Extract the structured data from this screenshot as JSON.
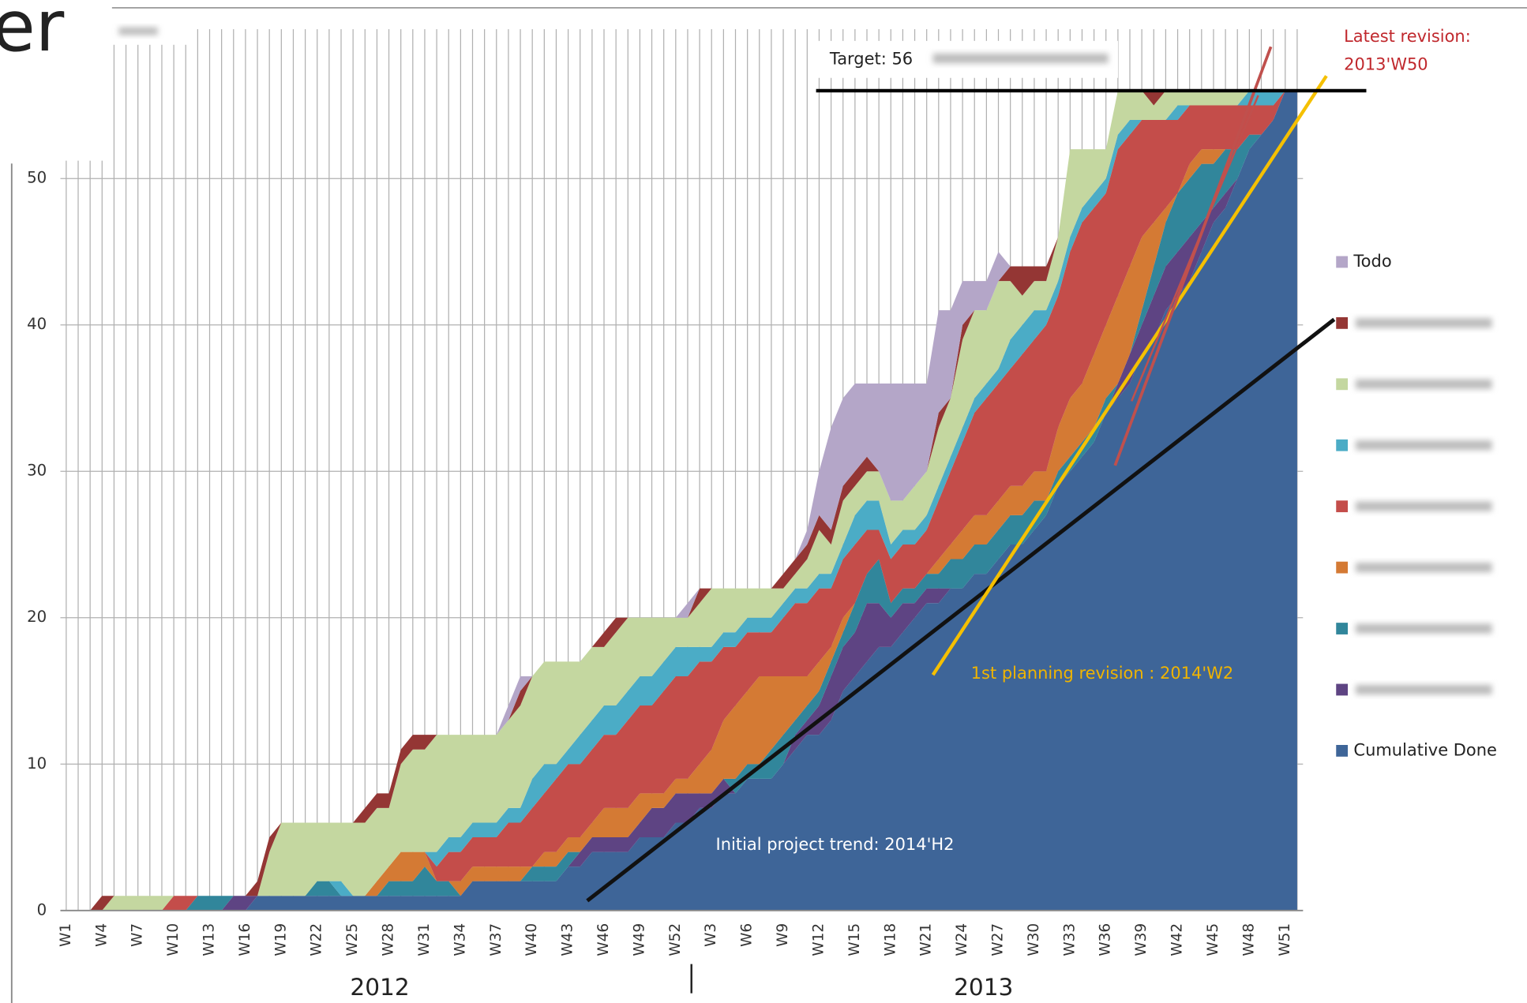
{
  "slide": {
    "title_fragment": "er"
  },
  "chart_data": {
    "type": "stacked-area",
    "categories": [
      "W1",
      null,
      null,
      "W4",
      null,
      null,
      "W7",
      null,
      null,
      "W10",
      null,
      null,
      "W13",
      null,
      null,
      "W16",
      null,
      null,
      "W19",
      null,
      null,
      "W22",
      null,
      null,
      "W25",
      null,
      null,
      "W28",
      null,
      null,
      "W31",
      null,
      null,
      "W34",
      null,
      null,
      "W37",
      null,
      null,
      "W40",
      null,
      null,
      "W43",
      null,
      null,
      "W46",
      null,
      null,
      "W49",
      null,
      null,
      "W52",
      null,
      null,
      "W3",
      null,
      null,
      "W6",
      null,
      null,
      "W9",
      null,
      null,
      "W12",
      null,
      null,
      "W15",
      null,
      null,
      "W18",
      null,
      null,
      "W21",
      null,
      null,
      "W24",
      null,
      null,
      "W27",
      null,
      null,
      "W30",
      null,
      null,
      "W33",
      null,
      null,
      "W36",
      null,
      null,
      "W39",
      null,
      null,
      "W42",
      null,
      null,
      "W45",
      null,
      null,
      "W48",
      null,
      null,
      "W51",
      null
    ],
    "x_group_labels": [
      "2012",
      "2013"
    ],
    "ylim": [
      0,
      60
    ],
    "yticks": [
      0,
      10,
      20,
      30,
      40,
      50
    ],
    "grid": true,
    "legend": "right",
    "series": [
      {
        "name": "Cumulative Done",
        "color": "#3e6598",
        "values": [
          0,
          0,
          0,
          0,
          0,
          0,
          0,
          0,
          0,
          0,
          0,
          0,
          0,
          0,
          0,
          0,
          1,
          1,
          1,
          1,
          1,
          1,
          1,
          1,
          1,
          1,
          1,
          1,
          1,
          1,
          1,
          1,
          1,
          1,
          2,
          2,
          2,
          2,
          2,
          2,
          2,
          2,
          3,
          3,
          4,
          4,
          4,
          4,
          5,
          5,
          5,
          6,
          6,
          7,
          7,
          8,
          8,
          9,
          9,
          9,
          10,
          11,
          12,
          12,
          13,
          15,
          16,
          17,
          18,
          18,
          19,
          20,
          21,
          21,
          22,
          22,
          23,
          23,
          24,
          25,
          25,
          26,
          27,
          29,
          30,
          31,
          32,
          34,
          35,
          36,
          38,
          39,
          41,
          42,
          43,
          45,
          47,
          48,
          50,
          52,
          53,
          54,
          56,
          56
        ]
      },
      {
        "color": "#5e4483",
        "values": [
          0,
          0,
          0,
          0,
          0,
          0,
          0,
          0,
          0,
          0,
          0,
          0,
          0,
          0,
          1,
          1,
          0,
          0,
          0,
          0,
          0,
          0,
          0,
          0,
          0,
          0,
          0,
          0,
          0,
          0,
          0,
          0,
          0,
          0,
          0,
          0,
          0,
          0,
          0,
          0,
          0,
          0,
          0,
          1,
          1,
          1,
          1,
          1,
          1,
          2,
          2,
          2,
          2,
          1,
          1,
          1,
          0,
          0,
          0,
          0,
          0,
          1,
          1,
          2,
          3,
          3,
          3,
          4,
          3,
          2,
          2,
          1,
          1,
          1,
          0,
          0,
          0,
          0,
          0,
          0,
          0,
          0,
          0,
          0,
          0,
          0,
          0,
          0,
          1,
          2,
          2,
          3,
          3,
          3,
          3,
          2,
          1,
          1,
          0,
          0,
          0,
          0,
          0,
          0
        ]
      },
      {
        "color": "#31869b",
        "values": [
          0,
          0,
          0,
          0,
          0,
          0,
          0,
          0,
          0,
          0,
          0,
          1,
          1,
          1,
          0,
          0,
          0,
          0,
          0,
          0,
          0,
          1,
          1,
          0,
          0,
          0,
          0,
          1,
          1,
          1,
          2,
          1,
          1,
          0,
          0,
          0,
          0,
          0,
          0,
          1,
          1,
          1,
          1,
          0,
          0,
          0,
          0,
          0,
          0,
          0,
          0,
          0,
          0,
          0,
          0,
          0,
          1,
          1,
          1,
          2,
          2,
          1,
          1,
          1,
          1,
          1,
          2,
          2,
          3,
          1,
          1,
          1,
          1,
          1,
          2,
          2,
          2,
          2,
          2,
          2,
          2,
          2,
          1,
          1,
          1,
          1,
          1,
          1,
          0,
          0,
          1,
          2,
          3,
          4,
          4,
          4,
          3,
          3,
          2,
          1,
          0,
          0,
          0,
          0
        ]
      },
      {
        "color": "#d47a34",
        "values": [
          0,
          0,
          0,
          0,
          0,
          0,
          0,
          0,
          0,
          0,
          0,
          0,
          0,
          0,
          0,
          0,
          0,
          0,
          0,
          0,
          0,
          0,
          0,
          0,
          0,
          0,
          1,
          1,
          2,
          2,
          1,
          0,
          0,
          1,
          1,
          1,
          1,
          1,
          1,
          0,
          1,
          1,
          1,
          1,
          1,
          2,
          2,
          2,
          2,
          1,
          1,
          1,
          1,
          2,
          3,
          4,
          5,
          5,
          6,
          5,
          4,
          3,
          2,
          2,
          1,
          1,
          0,
          0,
          0,
          0,
          0,
          0,
          0,
          1,
          1,
          2,
          2,
          2,
          2,
          2,
          2,
          2,
          2,
          3,
          4,
          4,
          5,
          5,
          6,
          6,
          5,
          3,
          1,
          0,
          1,
          1,
          1,
          0,
          0,
          0,
          0,
          0,
          0,
          0
        ]
      },
      {
        "color": "#c44d4a",
        "values": [
          0,
          0,
          0,
          0,
          0,
          0,
          0,
          0,
          0,
          1,
          1,
          0,
          0,
          0,
          0,
          0,
          0,
          0,
          0,
          0,
          0,
          0,
          0,
          0,
          0,
          0,
          0,
          0,
          0,
          0,
          0,
          1,
          2,
          2,
          2,
          2,
          2,
          3,
          3,
          4,
          4,
          5,
          5,
          5,
          5,
          5,
          5,
          6,
          6,
          6,
          7,
          7,
          7,
          7,
          6,
          5,
          4,
          4,
          3,
          3,
          4,
          5,
          5,
          5,
          4,
          4,
          4,
          3,
          2,
          3,
          3,
          3,
          3,
          4,
          5,
          6,
          7,
          8,
          8,
          8,
          9,
          9,
          10,
          9,
          10,
          11,
          10,
          9,
          10,
          9,
          8,
          7,
          6,
          5,
          4,
          3,
          3,
          3,
          3,
          2,
          2,
          1,
          0,
          0
        ]
      },
      {
        "color": "#4bacc6",
        "values": [
          0,
          0,
          0,
          0,
          0,
          0,
          0,
          0,
          0,
          0,
          0,
          0,
          0,
          0,
          0,
          0,
          0,
          0,
          0,
          0,
          0,
          0,
          0,
          1,
          0,
          0,
          0,
          0,
          0,
          0,
          0,
          1,
          1,
          1,
          1,
          1,
          1,
          1,
          1,
          2,
          2,
          1,
          1,
          2,
          2,
          2,
          2,
          2,
          2,
          2,
          2,
          2,
          2,
          1,
          1,
          1,
          1,
          1,
          1,
          1,
          1,
          1,
          1,
          1,
          1,
          1,
          2,
          2,
          2,
          1,
          1,
          1,
          1,
          1,
          1,
          1,
          1,
          1,
          1,
          2,
          2,
          2,
          1,
          1,
          1,
          1,
          1,
          1,
          1,
          1,
          0,
          0,
          0,
          1,
          0,
          0,
          0,
          0,
          0,
          1,
          1,
          1,
          0,
          0
        ]
      },
      {
        "color": "#c4d7a0",
        "values": [
          0,
          0,
          0,
          0,
          1,
          1,
          1,
          1,
          1,
          0,
          0,
          0,
          0,
          0,
          0,
          0,
          0,
          3,
          5,
          5,
          5,
          4,
          4,
          4,
          5,
          5,
          5,
          4,
          6,
          7,
          7,
          8,
          7,
          7,
          6,
          6,
          6,
          6,
          7,
          7,
          7,
          7,
          6,
          5,
          5,
          4,
          5,
          5,
          4,
          4,
          3,
          2,
          2,
          3,
          4,
          3,
          3,
          2,
          2,
          2,
          1,
          1,
          2,
          3,
          2,
          3,
          2,
          2,
          2,
          3,
          2,
          3,
          3,
          4,
          4,
          6,
          6,
          5,
          6,
          4,
          2,
          2,
          2,
          3,
          6,
          4,
          3,
          2,
          3,
          2,
          2,
          1,
          2,
          1,
          1,
          1,
          1,
          1,
          1,
          0,
          0,
          0,
          0,
          0
        ]
      },
      {
        "color": "#943634",
        "values": [
          0,
          0,
          0,
          1,
          0,
          0,
          0,
          0,
          0,
          0,
          0,
          0,
          0,
          0,
          0,
          0,
          1,
          1,
          0,
          0,
          0,
          0,
          0,
          0,
          0,
          1,
          1,
          1,
          1,
          1,
          1,
          0,
          0,
          0,
          0,
          0,
          0,
          0,
          1,
          0,
          0,
          0,
          0,
          0,
          0,
          1,
          1,
          0,
          0,
          0,
          0,
          0,
          0,
          1,
          0,
          0,
          0,
          0,
          0,
          0,
          1,
          1,
          1,
          1,
          1,
          1,
          1,
          1,
          0,
          0,
          0,
          0,
          0,
          1,
          0,
          1,
          0,
          0,
          0,
          1,
          2,
          1,
          1,
          0,
          0,
          0,
          0,
          0,
          0,
          0,
          0,
          1,
          0,
          0,
          0,
          0,
          0,
          0,
          0,
          0,
          0,
          0,
          0,
          0
        ]
      },
      {
        "name": "Todo",
        "color": "#b4a6c8",
        "values": [
          0,
          0,
          0,
          0,
          0,
          0,
          0,
          0,
          0,
          0,
          0,
          0,
          0,
          0,
          0,
          0,
          0,
          0,
          0,
          0,
          0,
          0,
          0,
          0,
          0,
          0,
          0,
          0,
          0,
          0,
          0,
          0,
          0,
          0,
          0,
          0,
          0,
          1,
          1,
          0,
          0,
          0,
          0,
          0,
          0,
          0,
          0,
          0,
          0,
          0,
          0,
          0,
          1,
          0,
          0,
          0,
          0,
          0,
          0,
          0,
          0,
          0,
          1,
          3,
          7,
          6,
          6,
          5,
          6,
          8,
          8,
          7,
          6,
          7,
          6,
          3,
          2,
          2,
          2,
          0,
          0,
          0,
          0,
          0,
          0,
          0,
          0,
          0,
          0,
          0,
          0,
          0,
          0,
          0,
          0,
          0,
          0,
          0,
          0,
          0,
          0,
          0,
          0,
          0
        ]
      }
    ],
    "target": {
      "label": "Target: 56",
      "value": 56
    },
    "annotations": {
      "initial_trend": "Initial project trend: 2014'H2",
      "first_revision": "1st planning revision : 2014'W2",
      "latest_revision": [
        "Latest revision:",
        "2013'W50"
      ]
    }
  }
}
